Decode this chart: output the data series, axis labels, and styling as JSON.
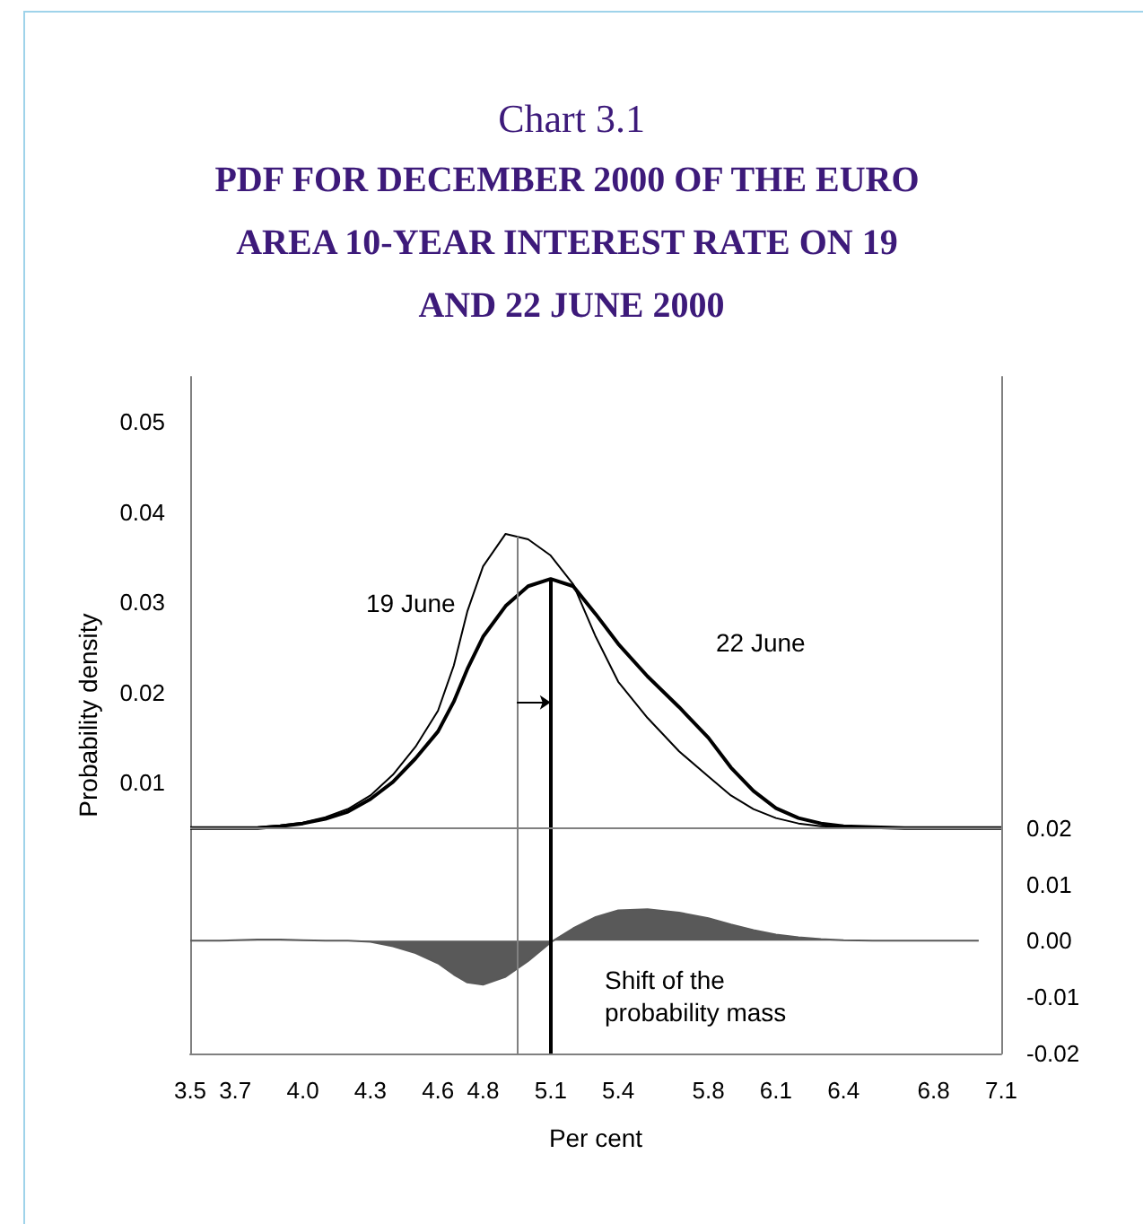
{
  "chart_data": {
    "type": "line",
    "title": "Chart 3.1",
    "subtitle": "PDF FOR DECEMBER 2000 OF THE EURO AREA 10-YEAR INTEREST RATE ON 19 AND 22 JUNE 2000",
    "xlabel": "Per cent",
    "ylabel": "Probability density",
    "x": [
      3.5,
      3.57,
      3.63,
      3.7,
      3.8,
      3.9,
      4.0,
      4.1,
      4.2,
      4.3,
      4.4,
      4.5,
      4.6,
      4.67,
      4.73,
      4.8,
      4.9,
      5.0,
      5.1,
      5.2,
      5.3,
      5.4,
      5.53,
      5.67,
      5.8,
      5.9,
      6.0,
      6.1,
      6.2,
      6.3,
      6.4,
      6.53,
      6.67,
      6.8,
      6.9,
      7.0,
      7.1
    ],
    "series": [
      {
        "color": "#000000",
        "values": [
          0.005,
          0.005,
          0.005,
          0.005,
          0.0051,
          0.0053,
          0.0056,
          0.0062,
          0.0071,
          0.0086,
          0.0109,
          0.014,
          0.018,
          0.023,
          0.029,
          0.034,
          0.0376,
          0.037,
          0.0352,
          0.032,
          0.0262,
          0.0212,
          0.0172,
          0.0135,
          0.0107,
          0.0086,
          0.0071,
          0.0061,
          0.0055,
          0.0052,
          0.0051,
          0.005,
          0.005,
          0.005,
          0.005,
          0.005,
          0.005
        ]
      },
      {
        "color": "#000000",
        "values": [
          0.005,
          0.005,
          0.005,
          0.005,
          0.005,
          0.0052,
          0.0055,
          0.006,
          0.0068,
          0.0082,
          0.0101,
          0.0127,
          0.0157,
          0.019,
          0.0226,
          0.0262,
          0.0296,
          0.0318,
          0.0326,
          0.0318,
          0.0287,
          0.0254,
          0.0218,
          0.0184,
          0.015,
          0.0117,
          0.0091,
          0.0072,
          0.0061,
          0.0055,
          0.0052,
          0.0051,
          0.005,
          0.005,
          0.005,
          0.005,
          0.005
        ]
      },
      {
        "type": "area",
        "axis": "y2",
        "color": "#595959",
        "x": [
          3.5,
          3.57,
          3.63,
          3.7,
          3.8,
          3.9,
          4.0,
          4.1,
          4.2,
          4.3,
          4.4,
          4.5,
          4.6,
          4.67,
          4.73,
          4.8,
          4.9,
          5.0,
          5.1,
          5.2,
          5.3,
          5.4,
          5.53,
          5.67,
          5.8,
          5.9,
          6.0,
          6.1,
          6.2,
          6.3,
          6.4,
          6.53,
          6.67,
          6.8,
          6.9,
          7.0
        ],
        "values": [
          0,
          0,
          0,
          0.0001,
          0.0002,
          0.0002,
          0.0001,
          0,
          0,
          -0.0002,
          -0.001,
          -0.0022,
          -0.004,
          -0.006,
          -0.0074,
          -0.0078,
          -0.0064,
          -0.0036,
          -0.0003,
          0.0022,
          0.0042,
          0.0054,
          0.0056,
          0.005,
          0.004,
          0.0029,
          0.0019,
          0.0011,
          0.0006,
          0.0003,
          0.0001,
          0,
          0,
          0,
          0,
          0
        ]
      }
    ],
    "xlim": [
      3.5,
      7.1
    ],
    "xticks": [
      3.5,
      3.7,
      {
        "value": 4.0,
        "label": "4.0"
      },
      4.3,
      4.6,
      4.8,
      5.1,
      5.4,
      5.8,
      6.1,
      6.4,
      6.8,
      7.1
    ],
    "ylim": [
      -0.02,
      0.055
    ],
    "yticks": [
      0.01,
      0.02,
      0.03,
      0.04,
      0.05
    ],
    "y2lim": [
      -0.02,
      0.1
    ],
    "y2ticks": [
      {
        "value": -0.02,
        "label": "-0.02"
      },
      {
        "value": -0.01,
        "label": "-0.01"
      },
      {
        "value": 0,
        "label": "0.00"
      },
      0.01,
      0.02
    ],
    "ref_lines": [
      {
        "axis": "x",
        "value": 4.95,
        "color": "#808080",
        "line_style": "solid"
      },
      {
        "axis": "x",
        "value": 5.1,
        "color": "#000000",
        "line_style": "solid"
      },
      {
        "axis": "y2",
        "value": 0.02,
        "color": "#808080",
        "line_style": "solid"
      }
    ],
    "annotations": [
      "19 June",
      "22 June",
      "Shift of the probability mass"
    ],
    "grid": false,
    "marker": "none",
    "line_style": "solid"
  }
}
